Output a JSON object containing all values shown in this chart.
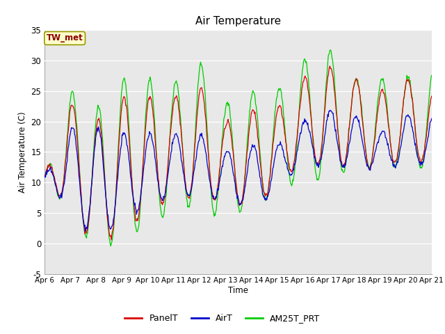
{
  "title": "Air Temperature",
  "ylabel": "Air Temperature (C)",
  "xlabel": "Time",
  "ylim": [
    -5,
    35
  ],
  "xlim": [
    0,
    360
  ],
  "bg_color": "#e8e8e8",
  "annotation_text": "TW_met",
  "annotation_color": "#8b0000",
  "annotation_bg": "#ffffcc",
  "annotation_border": "#999900",
  "line_colors": {
    "PanelT": "#dd0000",
    "AirT": "#0000cc",
    "AM25T_PRT": "#00cc00"
  },
  "xtick_labels": [
    "Apr 6",
    "Apr 7",
    "Apr 8",
    "Apr 9",
    "Apr 10",
    "Apr 11",
    "Apr 12",
    "Apr 13",
    "Apr 14",
    "Apr 15",
    "Apr 16",
    "Apr 17",
    "Apr 18",
    "Apr 19",
    "Apr 20",
    "Apr 21"
  ],
  "xtick_positions": [
    0,
    24,
    48,
    72,
    96,
    120,
    144,
    168,
    192,
    216,
    240,
    264,
    288,
    312,
    336,
    360
  ],
  "ytick_labels": [
    "-5",
    "0",
    "5",
    "10",
    "15",
    "20",
    "25",
    "30",
    "35"
  ],
  "ytick_positions": [
    -5,
    0,
    5,
    10,
    15,
    20,
    25,
    30,
    35
  ],
  "panel_mins": [
    9,
    7,
    -2,
    3,
    4,
    8,
    7,
    7,
    6,
    9,
    14,
    12,
    13,
    12,
    14,
    13
  ],
  "panel_maxs": [
    11,
    23,
    20,
    24,
    24,
    24,
    26,
    20,
    22,
    22,
    27,
    29,
    27,
    25,
    27,
    25
  ],
  "air_mins": [
    10,
    6,
    0,
    4,
    6,
    8,
    8,
    7,
    6,
    8,
    14,
    12,
    13,
    12,
    13,
    13
  ],
  "air_maxs": [
    11,
    19,
    19,
    18,
    18,
    18,
    18,
    15,
    16,
    16,
    20,
    22,
    21,
    18,
    21,
    21
  ],
  "am25_mins": [
    8,
    7,
    -3,
    2,
    2,
    6,
    6,
    4,
    6,
    8,
    11,
    10,
    13,
    12,
    13,
    12
  ],
  "am25_maxs": [
    11,
    25,
    22,
    27,
    27,
    26,
    30,
    23,
    25,
    25,
    30,
    32,
    27,
    27,
    27,
    29
  ]
}
